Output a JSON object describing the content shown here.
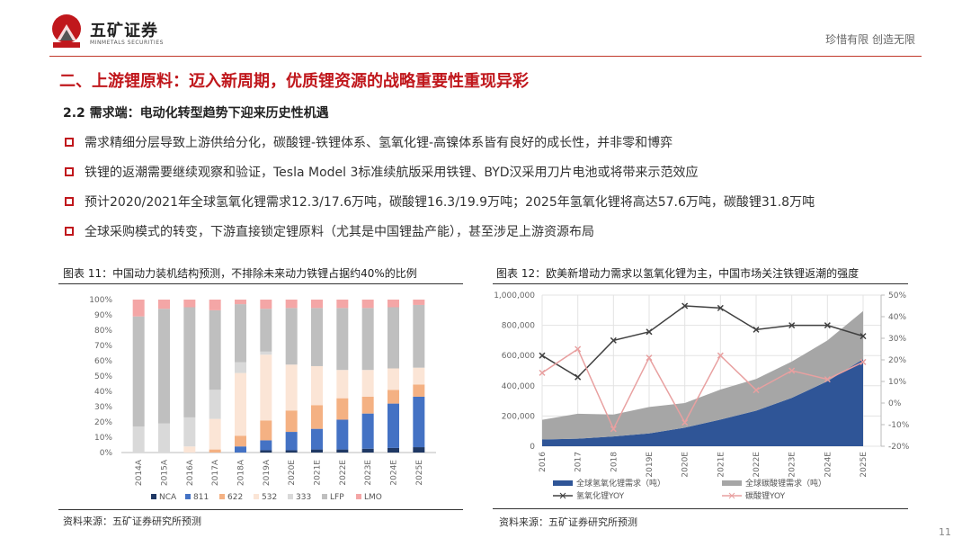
{
  "header": {
    "logo_name": "五矿证券",
    "logo_en": "MINMETALS SECURITIES",
    "slogan": "珍惜有限  创造无限"
  },
  "title": "二、上游锂原料：迈入新周期，优质锂资源的战略重要性重现异彩",
  "subtitle": "2.2 需求端：电动化转型趋势下迎来历史性机遇",
  "bullets": [
    "需求精细分层导致上游供给分化，碳酸锂-铁锂体系、氢氧化锂-高镍体系皆有良好的成长性，并非零和博弈",
    "铁锂的返潮需要继续观察和验证，Tesla Model 3标准续航版采用铁锂、BYD汉采用刀片电池或将带来示范效应",
    "预计2020/2021年全球氢氧化锂需求12.3/17.6万吨，碳酸锂16.3/19.9万吨；2025年氢氧化锂将高达57.6万吨，碳酸锂31.8万吨",
    "全球采购模式的转变，下游直接锁定锂原料（尤其是中国锂盐产能），甚至涉足上游资源布局"
  ],
  "page_number": "11",
  "chart_data": [
    {
      "type": "bar",
      "stacked": true,
      "title": "图表 11：中国动力装机结构预测，不排除未来动力铁锂占据约40%的比例",
      "source": "资料来源：五矿证券研究所预测",
      "categories": [
        "2014A",
        "2015A",
        "2016A",
        "2017A",
        "2018A",
        "2019A",
        "2020E",
        "2021E",
        "2022E",
        "2023E",
        "2024E",
        "2025E"
      ],
      "yticks": [
        "0%",
        "10%",
        "20%",
        "30%",
        "40%",
        "50%",
        "60%",
        "70%",
        "80%",
        "90%",
        "100%"
      ],
      "ylim": [
        0,
        100
      ],
      "legend": "bottom",
      "series": [
        {
          "name": "NCA",
          "color": "#1f3864",
          "values": [
            0,
            0,
            0,
            0,
            0,
            1.5,
            1.5,
            2,
            2,
            2.5,
            3,
            3.5
          ]
        },
        {
          "name": "811",
          "color": "#4472c4",
          "values": [
            0,
            0,
            0,
            0,
            4,
            6.5,
            12,
            13.5,
            19.5,
            23,
            29,
            33
          ]
        },
        {
          "name": "622",
          "color": "#f4b183",
          "values": [
            0,
            0,
            0,
            2,
            7,
            13,
            14,
            15.5,
            14,
            11,
            9,
            8
          ]
        },
        {
          "name": "532",
          "color": "#fbe5d6",
          "values": [
            0,
            0,
            4,
            20,
            41,
            43,
            30,
            25.5,
            18.5,
            17.5,
            14,
            11
          ]
        },
        {
          "name": "333",
          "color": "#d9d9d9",
          "values": [
            17,
            19,
            19,
            19,
            7,
            2,
            0,
            0,
            0,
            0,
            0,
            0
          ]
        },
        {
          "name": "LFP",
          "color": "#bfbfbf",
          "values": [
            72,
            75,
            72,
            52,
            38,
            28,
            37,
            38,
            40.5,
            40.5,
            40,
            41
          ]
        },
        {
          "name": "LMO",
          "color": "#f4a6a6",
          "values": [
            11,
            6,
            5,
            7,
            3,
            6,
            5.5,
            5.5,
            5.5,
            5.5,
            5,
            3.5
          ]
        }
      ]
    },
    {
      "type": "area",
      "stacked": true,
      "title": "图表 12：欧美新增动力需求以氢氧化锂为主，中国市场关注铁锂返潮的强度",
      "source": "资料来源：五矿证券研究所预测",
      "categories": [
        "2016",
        "2017",
        "2018",
        "2019E",
        "2020E",
        "2021E",
        "2022E",
        "2023E",
        "2024E",
        "2025E"
      ],
      "yticks_left": [
        "0",
        "200,000",
        "400,000",
        "600,000",
        "800,000",
        "1,000,000"
      ],
      "ylim_left": [
        0,
        1000000
      ],
      "yticks_right": [
        "-20%",
        "-10%",
        "0%",
        "10%",
        "20%",
        "30%",
        "40%",
        "50%"
      ],
      "ylim_right": [
        -20,
        50
      ],
      "grid": true,
      "legend": "bottom",
      "series": [
        {
          "name": "全球氢氧化锂需求（吨）",
          "kind": "area",
          "axis": "left",
          "color": "#2f5597",
          "values": [
            45000,
            50000,
            65000,
            85000,
            123000,
            176000,
            235000,
            320000,
            430000,
            576000
          ]
        },
        {
          "name": "全球碳酸锂需求（吨）",
          "kind": "area",
          "axis": "left",
          "color": "#a6a6a6",
          "values": [
            130000,
            165000,
            145000,
            175000,
            163000,
            199000,
            210000,
            240000,
            270000,
            318000
          ]
        },
        {
          "name": "氢氧化锂YOY",
          "kind": "line",
          "axis": "right",
          "color": "#404040",
          "values": [
            22,
            12,
            29,
            33,
            45,
            44,
            34,
            36,
            36,
            31
          ]
        },
        {
          "name": "碳酸锂YOY",
          "kind": "line",
          "axis": "right",
          "color": "#e8a0a0",
          "values": [
            14,
            25,
            -12,
            21,
            -9,
            22,
            6,
            15,
            11,
            19
          ]
        }
      ]
    }
  ]
}
